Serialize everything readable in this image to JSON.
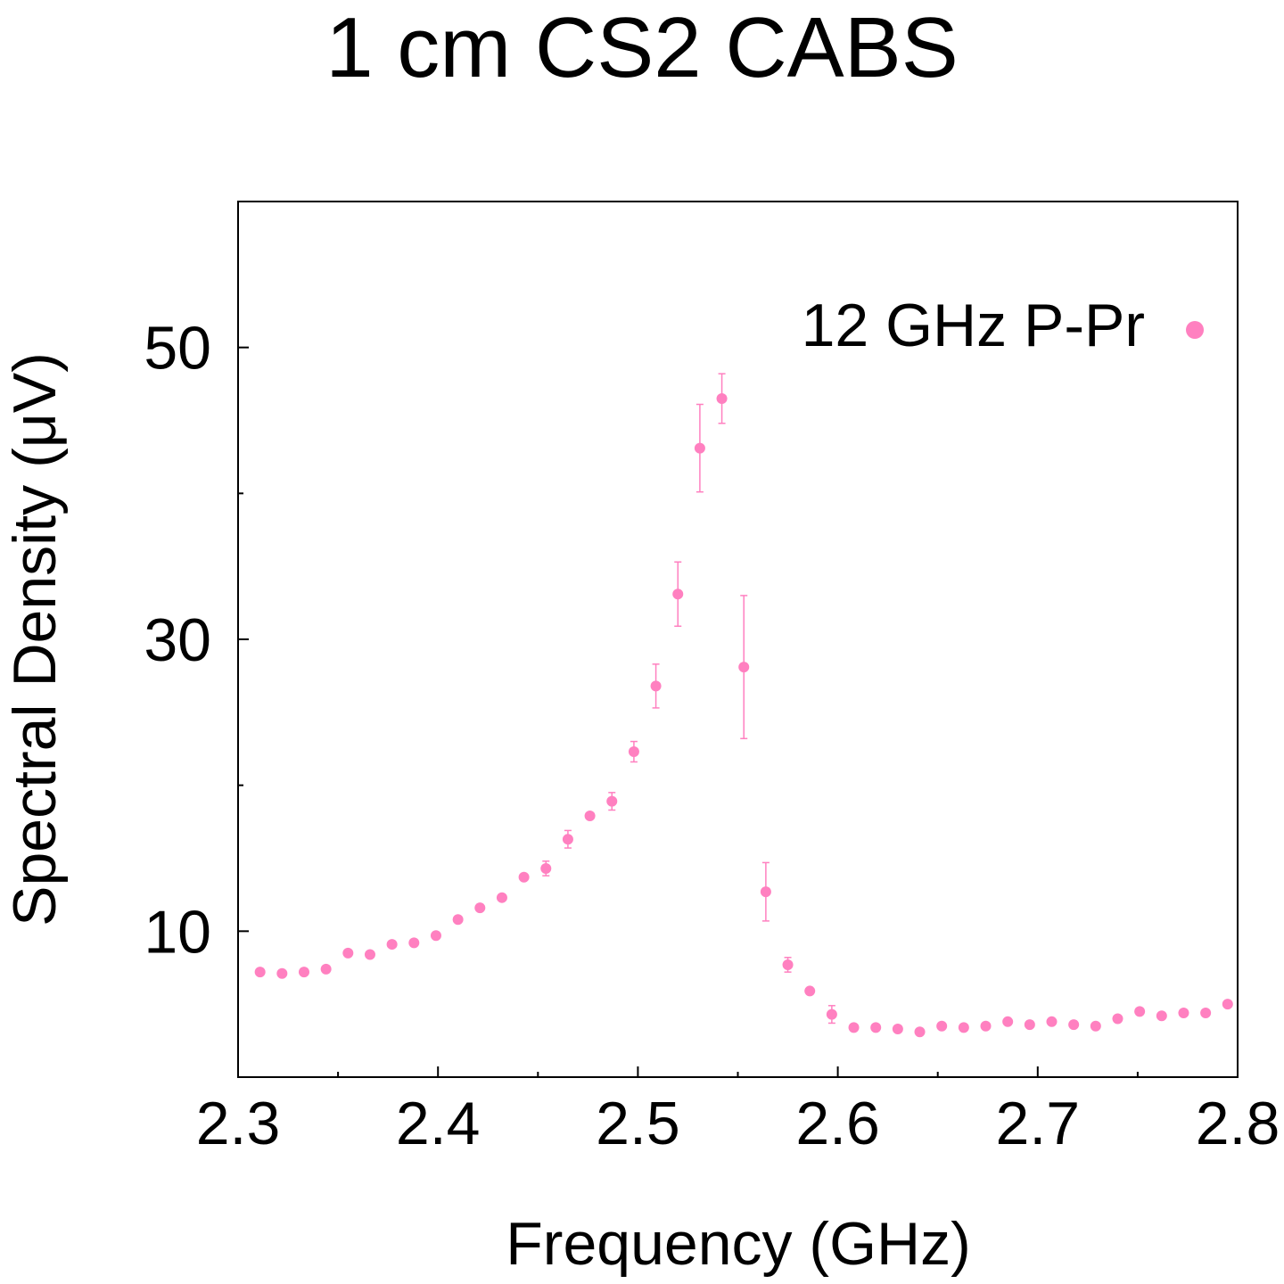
{
  "chart_data": {
    "type": "scatter",
    "title": "1 cm CS2 CABS",
    "xlabel": "Frequency (GHz)",
    "ylabel": "Spectral Density (μV)",
    "xlim": [
      2.3,
      2.8
    ],
    "ylim": [
      0,
      60
    ],
    "xticks": [
      2.3,
      2.4,
      2.5,
      2.6,
      2.7,
      2.8
    ],
    "xtick_labels": [
      "2.3",
      "2.4",
      "2.5",
      "2.6",
      "2.7",
      "2.8"
    ],
    "yticks": [
      10,
      30,
      50
    ],
    "ytick_labels": [
      "10",
      "30",
      "50"
    ],
    "yminor_ticks": [
      20,
      40
    ],
    "grid": false,
    "legend_position": "top-right",
    "series": [
      {
        "name": "12 GHz P-Pr",
        "color": "#ff80c0",
        "marker": "circle",
        "points": [
          {
            "x": 2.311,
            "y": 7.2
          },
          {
            "x": 2.322,
            "y": 7.1
          },
          {
            "x": 2.333,
            "y": 7.2
          },
          {
            "x": 2.344,
            "y": 7.4
          },
          {
            "x": 2.355,
            "y": 8.5
          },
          {
            "x": 2.366,
            "y": 8.4
          },
          {
            "x": 2.377,
            "y": 9.1
          },
          {
            "x": 2.388,
            "y": 9.2
          },
          {
            "x": 2.399,
            "y": 9.7
          },
          {
            "x": 2.41,
            "y": 10.8
          },
          {
            "x": 2.421,
            "y": 11.6
          },
          {
            "x": 2.432,
            "y": 12.3
          },
          {
            "x": 2.443,
            "y": 13.7
          },
          {
            "x": 2.454,
            "y": 14.3,
            "err": 0.5
          },
          {
            "x": 2.465,
            "y": 16.3,
            "err": 0.6
          },
          {
            "x": 2.476,
            "y": 17.9
          },
          {
            "x": 2.487,
            "y": 18.9,
            "err": 0.6
          },
          {
            "x": 2.498,
            "y": 22.3,
            "err": 0.7
          },
          {
            "x": 2.509,
            "y": 26.8,
            "err": 1.5
          },
          {
            "x": 2.52,
            "y": 33.1,
            "err": 2.2
          },
          {
            "x": 2.531,
            "y": 43.1,
            "err": 3.0
          },
          {
            "x": 2.542,
            "y": 46.5,
            "err": 1.7
          },
          {
            "x": 2.553,
            "y": 28.1,
            "err": 4.9
          },
          {
            "x": 2.564,
            "y": 12.7,
            "err": 2.0
          },
          {
            "x": 2.575,
            "y": 7.7,
            "err": 0.5
          },
          {
            "x": 2.586,
            "y": 5.9
          },
          {
            "x": 2.597,
            "y": 4.3,
            "err": 0.6
          },
          {
            "x": 2.608,
            "y": 3.4
          },
          {
            "x": 2.619,
            "y": 3.4
          },
          {
            "x": 2.63,
            "y": 3.3
          },
          {
            "x": 2.641,
            "y": 3.1
          },
          {
            "x": 2.652,
            "y": 3.5
          },
          {
            "x": 2.663,
            "y": 3.4
          },
          {
            "x": 2.674,
            "y": 3.5
          },
          {
            "x": 2.685,
            "y": 3.8
          },
          {
            "x": 2.696,
            "y": 3.6
          },
          {
            "x": 2.707,
            "y": 3.8
          },
          {
            "x": 2.718,
            "y": 3.6
          },
          {
            "x": 2.729,
            "y": 3.5
          },
          {
            "x": 2.74,
            "y": 4.0
          },
          {
            "x": 2.751,
            "y": 4.5
          },
          {
            "x": 2.762,
            "y": 4.2
          },
          {
            "x": 2.773,
            "y": 4.4
          },
          {
            "x": 2.784,
            "y": 4.4
          },
          {
            "x": 2.795,
            "y": 5.0
          }
        ]
      }
    ]
  }
}
